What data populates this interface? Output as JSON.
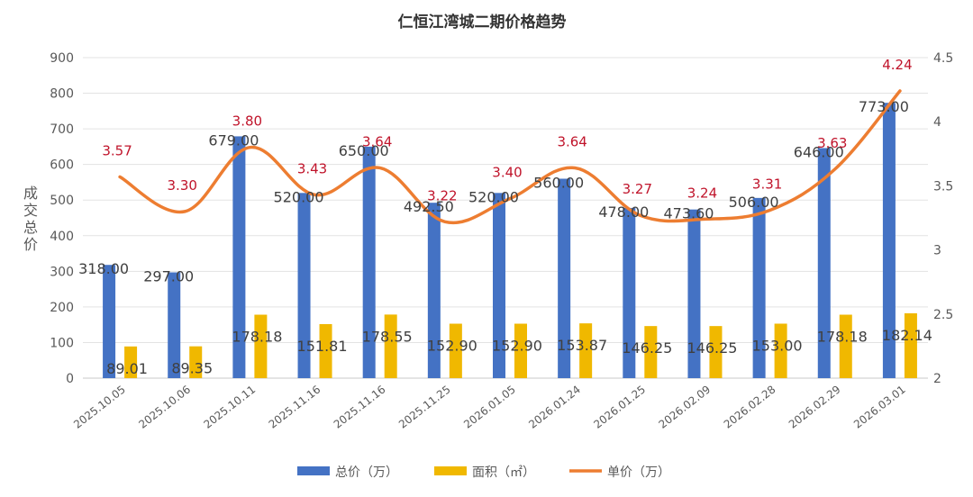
{
  "chart_data": {
    "type": "bar",
    "title": "仁恒江湾城二期价格趋势",
    "ylabel": "成交总价",
    "categories": [
      "2025.10.05",
      "2025.10.06",
      "2025.10.11",
      "2025.11.16",
      "2025.11.16",
      "2025.11.25",
      "2026.01.05",
      "2026.01.24",
      "2026.01.25",
      "2026.02.09",
      "2026.02.28",
      "2026.02.29",
      "2026.03.01"
    ],
    "y_left": {
      "min": 0,
      "max": 900,
      "ticks": [
        0,
        100,
        200,
        300,
        400,
        500,
        600,
        700,
        800,
        900
      ]
    },
    "y_right": {
      "min": 2,
      "max": 4.5,
      "ticks": [
        "2",
        "2.5",
        "3",
        "3.5",
        "4",
        "4.5"
      ]
    },
    "series": [
      {
        "name": "总价（万）",
        "kind": "bar",
        "axis": "left",
        "color": "#4472c4",
        "values": [
          318,
          297,
          679,
          520,
          650,
          492.5,
          520,
          560,
          478,
          473.6,
          506,
          646,
          773
        ],
        "labels": [
          "318.00",
          "297.00",
          "679.00",
          "520.00",
          "650.00",
          "492.50",
          "520.00",
          "560.00",
          "478.00",
          "473.60",
          "506.00",
          "646.00",
          "773.00"
        ]
      },
      {
        "name": "面积（㎡）",
        "kind": "bar",
        "axis": "left",
        "color": "#f0b800",
        "values": [
          89.01,
          89.35,
          178.18,
          151.81,
          178.55,
          152.9,
          152.9,
          153.87,
          146.25,
          146.25,
          153,
          178.18,
          182.14
        ],
        "labels": [
          "89.01",
          "89.35",
          "178.18",
          "151.81",
          "178.55",
          "152.90",
          "152.90",
          "153.87",
          "146.25",
          "146.25",
          "153.00",
          "178.18",
          "182.14"
        ]
      },
      {
        "name": "单价（万）",
        "kind": "line",
        "axis": "right",
        "color": "#ed7d31",
        "values": [
          3.57,
          3.3,
          3.8,
          3.43,
          3.64,
          3.22,
          3.4,
          3.64,
          3.27,
          3.24,
          3.31,
          3.63,
          4.24
        ],
        "labels": [
          "3.57",
          "3.30",
          "3.80",
          "3.43",
          "3.64",
          "3.22",
          "3.40",
          "3.64",
          "3.27",
          "3.24",
          "3.31",
          "3.63",
          "4.24"
        ]
      }
    ],
    "legend_position": "bottom",
    "grid": true
  }
}
